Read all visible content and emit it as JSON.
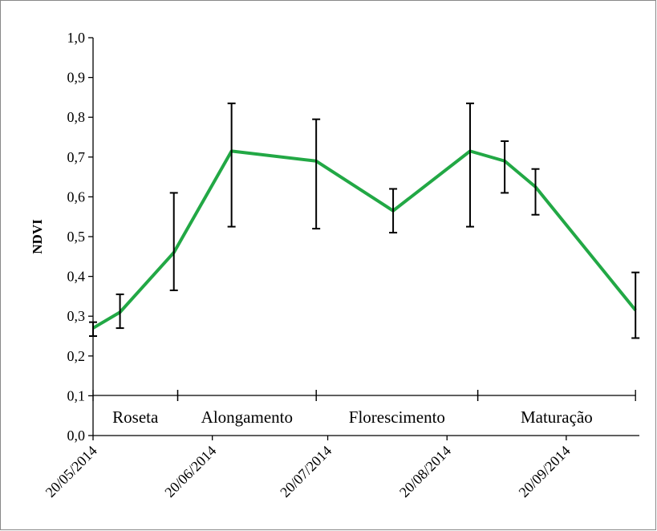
{
  "chart_data": {
    "type": "line",
    "y_label": "NDVI",
    "x": [
      "20/05/2014",
      "27/05/2014",
      "10/06/2014",
      "25/06/2014",
      "17/07/2014",
      "06/08/2014",
      "26/08/2014",
      "04/09/2014",
      "12/09/2014",
      "08/10/2014"
    ],
    "series": [
      {
        "color": "#22a845",
        "values": [
          0.27,
          0.31,
          0.46,
          0.715,
          0.69,
          0.565,
          0.715,
          0.69,
          0.625,
          0.315
        ],
        "lower": [
          0.25,
          0.27,
          0.365,
          0.525,
          0.52,
          0.51,
          0.525,
          0.61,
          0.555,
          0.245
        ],
        "upper": [
          0.285,
          0.355,
          0.61,
          0.835,
          0.795,
          0.62,
          0.835,
          0.74,
          0.67,
          0.41
        ]
      }
    ],
    "xlim": [
      "20/05/2014",
      "09/10/2014"
    ],
    "xticks": [
      "20/05/2014",
      "20/06/2014",
      "20/07/2014",
      "20/08/2014",
      "20/09/2014"
    ],
    "ylim": [
      0,
      1
    ],
    "yticks": [
      {
        "value": 0,
        "label": "0,0"
      },
      {
        "value": 0.1,
        "label": "0,1"
      },
      {
        "value": 0.2,
        "label": "0,2"
      },
      {
        "value": 0.3,
        "label": "0,3"
      },
      {
        "value": 0.4,
        "label": "0,4"
      },
      {
        "value": 0.5,
        "label": "0,5"
      },
      {
        "value": 0.6,
        "label": "0,6"
      },
      {
        "value": 0.7,
        "label": "0,7"
      },
      {
        "value": 0.8,
        "label": "0,8"
      },
      {
        "value": 0.9,
        "label": "0,9"
      },
      {
        "value": 1,
        "label": "1,0"
      }
    ],
    "phases": [
      {
        "label": "Roseta",
        "start": "20/05/2014",
        "end": "11/06/2014"
      },
      {
        "label": "Alongamento",
        "start": "11/06/2014",
        "end": "17/07/2014"
      },
      {
        "label": "Florescimento",
        "start": "17/07/2014",
        "end": "28/08/2014"
      },
      {
        "label": "Maturação",
        "start": "28/08/2014",
        "end": "08/10/2014"
      }
    ]
  }
}
